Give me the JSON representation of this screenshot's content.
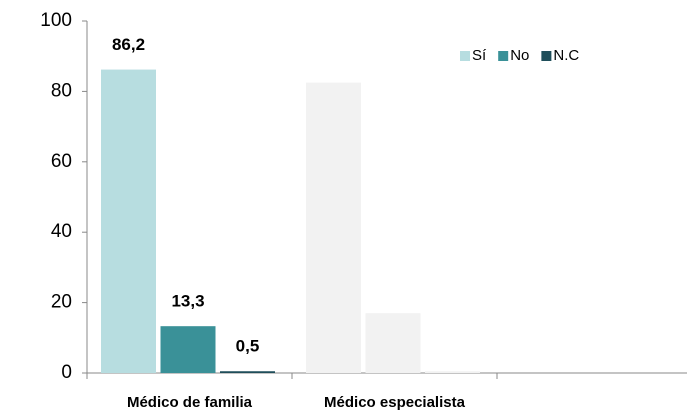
{
  "chart_data": {
    "type": "bar",
    "categories": [
      "Médico de familia",
      "Médico especialista",
      null
    ],
    "series": [
      {
        "name": "Sí",
        "color": "#b7dde0",
        "point_colors": [
          "#b7dde0",
          "#f2f2f2",
          null
        ],
        "values": [
          86.2,
          82.5,
          null
        ],
        "value_labels": [
          "86,2",
          null,
          null
        ]
      },
      {
        "name": "No",
        "color": "#3a9198",
        "point_colors": [
          "#3a9198",
          "#f2f2f2",
          null
        ],
        "values": [
          13.3,
          17,
          null
        ],
        "value_labels": [
          "13,3",
          null,
          null
        ]
      },
      {
        "name": "N.C",
        "color": "#1f4e5a",
        "point_colors": [
          "#1f4e5a",
          "#f2f2f2",
          null
        ],
        "values": [
          0.5,
          0.5,
          null
        ],
        "value_labels": [
          "0,5",
          null,
          null
        ]
      }
    ],
    "ylim": [
      0,
      100
    ],
    "yticks": [
      0,
      20,
      40,
      60,
      80,
      100
    ],
    "grid": false,
    "legend": "top-right"
  }
}
